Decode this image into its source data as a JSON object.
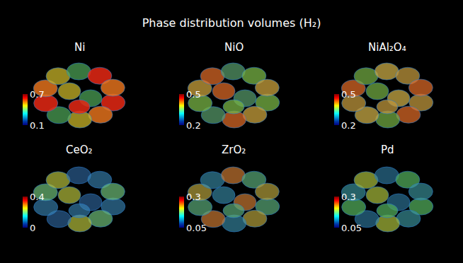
{
  "chart_data": {
    "type": "volume_panels",
    "title": "Phase distribution volumes (H₂)",
    "panels": [
      {
        "title": "Ni",
        "colorbar": {
          "range": [
            0.1,
            0.7
          ],
          "ticks": [
            0.1,
            0.7
          ]
        }
      },
      {
        "title": "NiO",
        "colorbar": {
          "range": [
            0.2,
            0.5
          ],
          "ticks": [
            0.2,
            0.5
          ]
        }
      },
      {
        "title": "NiAl₂O₄",
        "colorbar": {
          "range": [
            0.2,
            0.5
          ],
          "ticks": [
            0.2,
            0.5
          ]
        }
      },
      {
        "title": "CeO₂",
        "colorbar": {
          "range": [
            0,
            0.4
          ],
          "ticks": [
            0,
            0.4
          ]
        }
      },
      {
        "title": "ZrO₂",
        "colorbar": {
          "range": [
            0.05,
            0.3
          ],
          "ticks": [
            0.05,
            0.3
          ]
        }
      },
      {
        "title": "Pd",
        "colorbar": {
          "range": [
            0.05,
            0.3
          ],
          "ticks": [
            0.05,
            0.3
          ]
        }
      }
    ]
  }
}
